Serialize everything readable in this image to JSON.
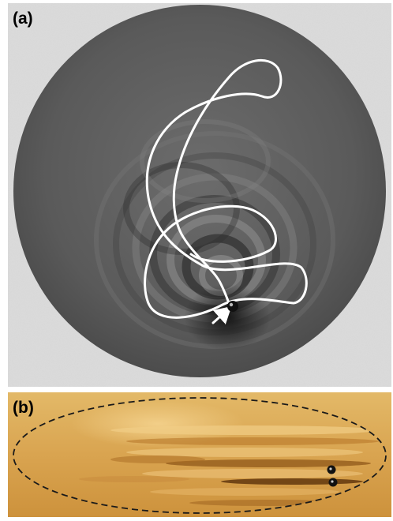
{
  "panel_a": {
    "label": "(a)",
    "background_color": "#d8d8d8",
    "bath_color": "#5e5e5e",
    "trajectory_color": "#ffffff",
    "droplet_color": "#111111"
  },
  "panel_b": {
    "label": "(b)",
    "background_color": "#d9a44d",
    "boundary_style": "dashed ellipse",
    "droplet_color": "#111111",
    "droplet_count": 2
  }
}
